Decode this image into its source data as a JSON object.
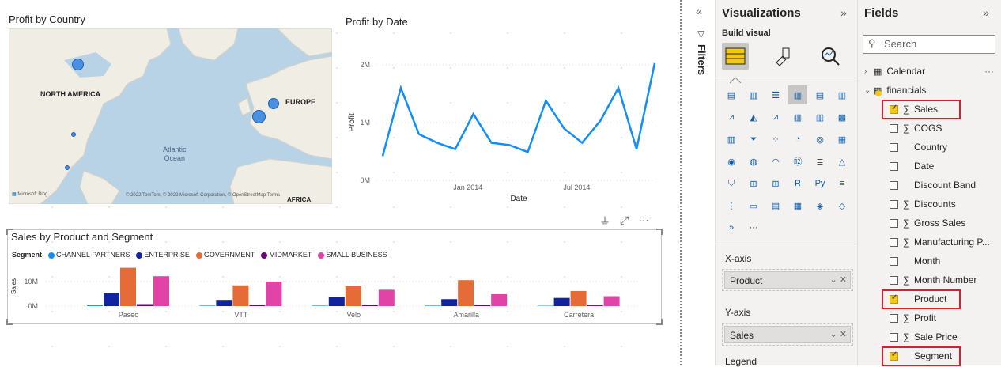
{
  "map_visual": {
    "title": "Profit by Country",
    "labels": {
      "north_america": "NORTH AMERICA",
      "europe": "EUROPE",
      "ocean_line1": "Atlantic",
      "ocean_line2": "Ocean",
      "africa": "AFRICA"
    },
    "credit": "© 2022 TomTom, © 2022 Microsoft Corporation, © OpenStreetMap Terms",
    "brand": "Microsoft Bing"
  },
  "line_visual": {
    "title": "Profit by Date",
    "chart_data": {
      "type": "line",
      "title": "Profit by Date",
      "xlabel": "Date",
      "ylabel": "Profit",
      "y_ticks": [
        "0M",
        "1M",
        "2M"
      ],
      "x_ticks": [
        "Jan 2014",
        "Jul 2014"
      ],
      "ylim": [
        0,
        2000000
      ],
      "x": [
        "2013-09",
        "2013-10",
        "2013-11",
        "2013-12",
        "2014-01",
        "2014-02",
        "2014-03",
        "2014-04",
        "2014-05",
        "2014-06",
        "2014-07",
        "2014-08",
        "2014-09",
        "2014-10",
        "2014-11",
        "2014-12"
      ],
      "values": [
        420000,
        1600000,
        800000,
        650000,
        540000,
        1150000,
        650000,
        610000,
        490000,
        1380000,
        900000,
        650000,
        1030000,
        1600000,
        540000,
        2030000
      ],
      "color": "#118dff"
    }
  },
  "bar_visual": {
    "title": "Sales by Product and Segment",
    "legend_title": "Segment",
    "chart_data": {
      "type": "bar",
      "title": "Sales by Product and Segment",
      "ylabel": "Sales",
      "y_ticks": [
        "0M",
        "10M"
      ],
      "ylim": [
        0,
        16000000
      ],
      "categories": [
        "Paseo",
        "VTT",
        "Velo",
        "Amarilla",
        "Carretera"
      ],
      "series": [
        {
          "name": "CHANNEL PARTNERS",
          "color": "#118dff",
          "values": [
            300000,
            200000,
            200000,
            200000,
            150000
          ]
        },
        {
          "name": "ENTERPRISE",
          "color": "#12239e",
          "values": [
            5300000,
            2500000,
            3700000,
            2800000,
            3300000
          ]
        },
        {
          "name": "GOVERNMENT",
          "color": "#e66c37",
          "values": [
            15500000,
            8400000,
            8000000,
            10500000,
            6100000
          ]
        },
        {
          "name": "MIDMARKET",
          "color": "#6b007b",
          "values": [
            800000,
            400000,
            400000,
            400000,
            300000
          ]
        },
        {
          "name": "SMALL BUSINESS",
          "color": "#e044a7",
          "values": [
            12100000,
            9900000,
            6600000,
            4800000,
            4000000
          ]
        }
      ]
    }
  },
  "filters": {
    "label": "Filters"
  },
  "visualizations": {
    "title": "Visualizations",
    "build_label": "Build visual",
    "more": "···",
    "xaxis_label": "X-axis",
    "xaxis_value": "Product",
    "yaxis_label": "Y-axis",
    "yaxis_value": "Sales",
    "legend_label": "Legend"
  },
  "fields": {
    "title": "Fields",
    "search_placeholder": "Search",
    "tables": [
      {
        "name": "Calendar",
        "expanded": false
      },
      {
        "name": "financials",
        "expanded": true
      }
    ],
    "table_more": "···",
    "items": [
      {
        "name": "Sales",
        "checked": true,
        "sigma": true,
        "highlight": true
      },
      {
        "name": "COGS",
        "checked": false,
        "sigma": true,
        "highlight": false
      },
      {
        "name": "Country",
        "checked": false,
        "sigma": false,
        "highlight": false
      },
      {
        "name": "Date",
        "checked": false,
        "sigma": false,
        "highlight": false
      },
      {
        "name": "Discount Band",
        "checked": false,
        "sigma": false,
        "highlight": false
      },
      {
        "name": "Discounts",
        "checked": false,
        "sigma": true,
        "highlight": false
      },
      {
        "name": "Gross Sales",
        "checked": false,
        "sigma": true,
        "highlight": false
      },
      {
        "name": "Manufacturing P...",
        "checked": false,
        "sigma": true,
        "highlight": false
      },
      {
        "name": "Month",
        "checked": false,
        "sigma": false,
        "highlight": false
      },
      {
        "name": "Month Number",
        "checked": false,
        "sigma": true,
        "highlight": false
      },
      {
        "name": "Product",
        "checked": true,
        "sigma": false,
        "highlight": true
      },
      {
        "name": "Profit",
        "checked": false,
        "sigma": true,
        "highlight": false
      },
      {
        "name": "Sale Price",
        "checked": false,
        "sigma": true,
        "highlight": false
      },
      {
        "name": "Segment",
        "checked": true,
        "sigma": false,
        "highlight": true
      }
    ]
  }
}
